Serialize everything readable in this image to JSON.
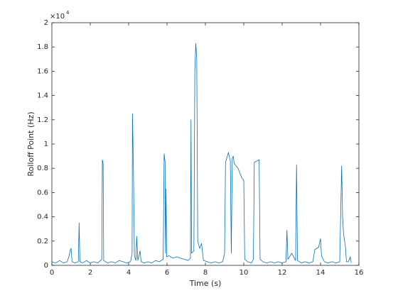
{
  "chart_data": {
    "type": "line",
    "xlabel": "Time (s)",
    "ylabel": "Rolloff Point (Hz)",
    "y_multiplier": {
      "base": "×10",
      "power": "4"
    },
    "color": "#0072bd",
    "xlim": [
      0,
      16
    ],
    "xticks": [
      0,
      2,
      4,
      6,
      8,
      10,
      12,
      14,
      16
    ],
    "ylim": [
      0,
      2
    ],
    "yticks": [
      0,
      0.2,
      0.4,
      0.6,
      0.8,
      1,
      1.2,
      1.4,
      1.6,
      1.8,
      2
    ],
    "x": [
      0,
      0.2,
      0.4,
      0.6,
      0.8,
      0.9,
      0.95,
      1.0,
      1.05,
      1.2,
      1.38,
      1.42,
      1.46,
      1.6,
      1.8,
      2.0,
      2.2,
      2.4,
      2.6,
      2.63,
      2.67,
      2.7,
      2.9,
      3.1,
      3.3,
      3.5,
      3.7,
      3.9,
      4.1,
      4.18,
      4.2,
      4.25,
      4.3,
      4.38,
      4.42,
      4.48,
      4.6,
      4.65,
      4.8,
      5.0,
      5.2,
      5.4,
      5.6,
      5.8,
      5.85,
      5.9,
      5.92,
      5.95,
      5.98,
      6.1,
      6.3,
      6.5,
      6.7,
      6.9,
      7.1,
      7.22,
      7.25,
      7.28,
      7.4,
      7.45,
      7.5,
      7.55,
      7.6,
      7.7,
      7.8,
      7.9,
      8.1,
      8.3,
      8.5,
      8.7,
      8.9,
      9.0,
      9.05,
      9.2,
      9.3,
      9.35,
      9.4,
      9.45,
      9.5,
      9.7,
      9.9,
      10.0,
      10.05,
      10.2,
      10.4,
      10.5,
      10.55,
      10.8,
      10.85,
      11.0,
      11.2,
      11.4,
      11.6,
      11.8,
      12.0,
      12.2,
      12.25,
      12.3,
      12.5,
      12.7,
      12.75,
      12.8,
      13.0,
      13.2,
      13.4,
      13.6,
      13.7,
      13.9,
      14.0,
      14.05,
      14.2,
      14.4,
      14.6,
      14.8,
      15.0,
      15.1,
      15.15,
      15.2,
      15.3,
      15.35,
      15.45,
      15.55,
      15.6
    ],
    "values": [
      0.03,
      0.02,
      0.04,
      0.02,
      0.03,
      0.08,
      0.12,
      0.14,
      0.03,
      0.02,
      0.03,
      0.35,
      0.03,
      0.02,
      0.04,
      0.02,
      0.03,
      0.02,
      0.05,
      0.87,
      0.84,
      0.04,
      0.02,
      0.03,
      0.02,
      0.04,
      0.03,
      0.02,
      0.03,
      0.1,
      1.25,
      0.8,
      0.08,
      0.04,
      0.24,
      0.04,
      0.12,
      0.03,
      0.02,
      0.03,
      0.02,
      0.04,
      0.03,
      0.05,
      0.92,
      0.85,
      0.1,
      0.63,
      0.07,
      0.08,
      0.06,
      0.07,
      0.06,
      0.05,
      0.04,
      0.06,
      1.2,
      0.1,
      0.12,
      1.6,
      1.83,
      1.7,
      0.2,
      0.14,
      0.18,
      0.04,
      0.03,
      0.02,
      0.03,
      0.02,
      0.03,
      0.1,
      0.85,
      0.93,
      0.86,
      0.1,
      0.88,
      0.9,
      0.84,
      0.8,
      0.72,
      0.7,
      0.05,
      0.03,
      0.02,
      0.05,
      0.85,
      0.87,
      0.05,
      0.03,
      0.02,
      0.03,
      0.02,
      0.03,
      0.02,
      0.03,
      0.29,
      0.05,
      0.1,
      0.04,
      0.83,
      0.04,
      0.02,
      0.03,
      0.02,
      0.03,
      0.13,
      0.15,
      0.22,
      0.08,
      0.03,
      0.02,
      0.03,
      0.02,
      0.03,
      0.82,
      0.4,
      0.26,
      0.15,
      0.03,
      0.03,
      0.07,
      0.02
    ]
  }
}
